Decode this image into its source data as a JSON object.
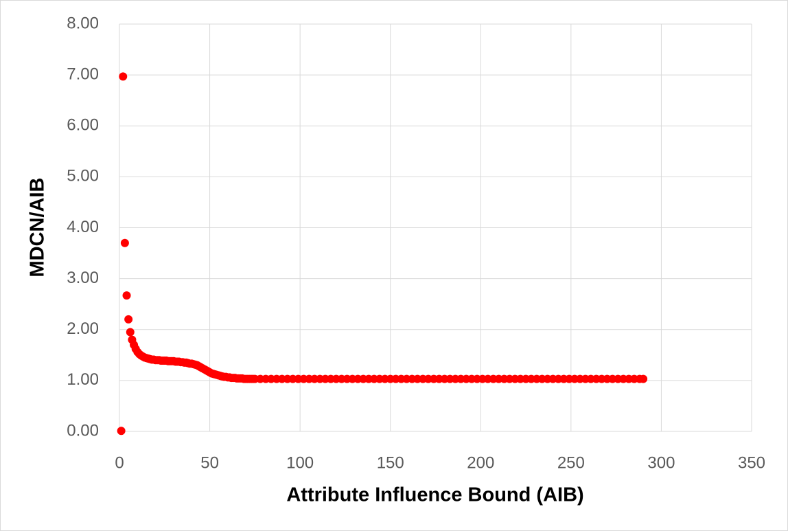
{
  "chart_data": {
    "type": "scatter",
    "x_label": "Attribute Influence Bound (AIB)",
    "y_label": "MDCN/AIB",
    "color": "#ff0000",
    "grid": true,
    "xlim": [
      0,
      350
    ],
    "xticks": [
      0,
      50,
      100,
      150,
      200,
      250,
      300,
      350
    ],
    "ylim": [
      0,
      8
    ],
    "yticks": [
      {
        "value": 0,
        "label": "0.00"
      },
      {
        "value": 1,
        "label": "1.00"
      },
      {
        "value": 2,
        "label": "2.00"
      },
      {
        "value": 3,
        "label": "3.00"
      },
      {
        "value": 4,
        "label": "4.00"
      },
      {
        "value": 5,
        "label": "5.00"
      },
      {
        "value": 6,
        "label": "6.00"
      },
      {
        "value": 7,
        "label": "7.00"
      },
      {
        "value": 8,
        "label": "8.00"
      }
    ],
    "x": [
      1,
      2,
      3,
      4,
      5,
      6,
      7,
      8,
      9,
      10,
      11,
      12,
      13,
      14,
      15,
      16,
      17,
      18,
      19,
      20,
      21,
      22,
      23,
      24,
      25,
      26,
      27,
      28,
      29,
      30,
      31,
      32,
      33,
      34,
      35,
      36,
      37,
      38,
      39,
      40,
      41,
      42,
      43,
      44,
      45,
      46,
      47,
      48,
      49,
      50,
      51,
      52,
      53,
      54,
      55,
      56,
      57,
      58,
      59,
      60,
      61,
      62,
      63,
      64,
      65,
      66,
      67,
      68,
      69,
      70,
      71,
      72,
      73,
      74,
      75,
      78,
      81,
      84,
      87,
      90,
      93,
      96,
      99,
      102,
      105,
      108,
      111,
      114,
      117,
      120,
      123,
      126,
      129,
      132,
      135,
      138,
      141,
      144,
      147,
      150,
      153,
      156,
      159,
      162,
      165,
      168,
      171,
      174,
      177,
      180,
      183,
      186,
      189,
      192,
      195,
      198,
      201,
      204,
      207,
      210,
      213,
      216,
      219,
      222,
      225,
      228,
      231,
      234,
      237,
      240,
      243,
      246,
      249,
      252,
      255,
      258,
      261,
      264,
      267,
      270,
      273,
      276,
      279,
      282,
      285,
      288,
      290
    ],
    "values": [
      0.01,
      6.97,
      3.7,
      2.67,
      2.2,
      1.95,
      1.8,
      1.7,
      1.62,
      1.56,
      1.52,
      1.49,
      1.47,
      1.45,
      1.44,
      1.43,
      1.42,
      1.41,
      1.41,
      1.4,
      1.4,
      1.4,
      1.39,
      1.39,
      1.39,
      1.39,
      1.38,
      1.38,
      1.38,
      1.38,
      1.37,
      1.37,
      1.37,
      1.36,
      1.36,
      1.35,
      1.35,
      1.34,
      1.33,
      1.33,
      1.32,
      1.31,
      1.3,
      1.28,
      1.26,
      1.24,
      1.22,
      1.2,
      1.18,
      1.16,
      1.14,
      1.13,
      1.12,
      1.11,
      1.1,
      1.09,
      1.08,
      1.07,
      1.07,
      1.06,
      1.06,
      1.05,
      1.05,
      1.05,
      1.04,
      1.04,
      1.04,
      1.04,
      1.03,
      1.03,
      1.03,
      1.03,
      1.03,
      1.03,
      1.03,
      1.03,
      1.03,
      1.03,
      1.03,
      1.03,
      1.03,
      1.03,
      1.03,
      1.03,
      1.03,
      1.03,
      1.03,
      1.03,
      1.03,
      1.03,
      1.03,
      1.03,
      1.03,
      1.03,
      1.03,
      1.03,
      1.03,
      1.03,
      1.03,
      1.03,
      1.03,
      1.03,
      1.03,
      1.03,
      1.03,
      1.03,
      1.03,
      1.03,
      1.03,
      1.03,
      1.03,
      1.03,
      1.03,
      1.03,
      1.03,
      1.03,
      1.03,
      1.03,
      1.03,
      1.03,
      1.03,
      1.03,
      1.03,
      1.03,
      1.03,
      1.03,
      1.03,
      1.03,
      1.03,
      1.03,
      1.03,
      1.03,
      1.03,
      1.03,
      1.03,
      1.03,
      1.03,
      1.03,
      1.03,
      1.03,
      1.03,
      1.03,
      1.03,
      1.03,
      1.03,
      1.03,
      1.03
    ]
  }
}
